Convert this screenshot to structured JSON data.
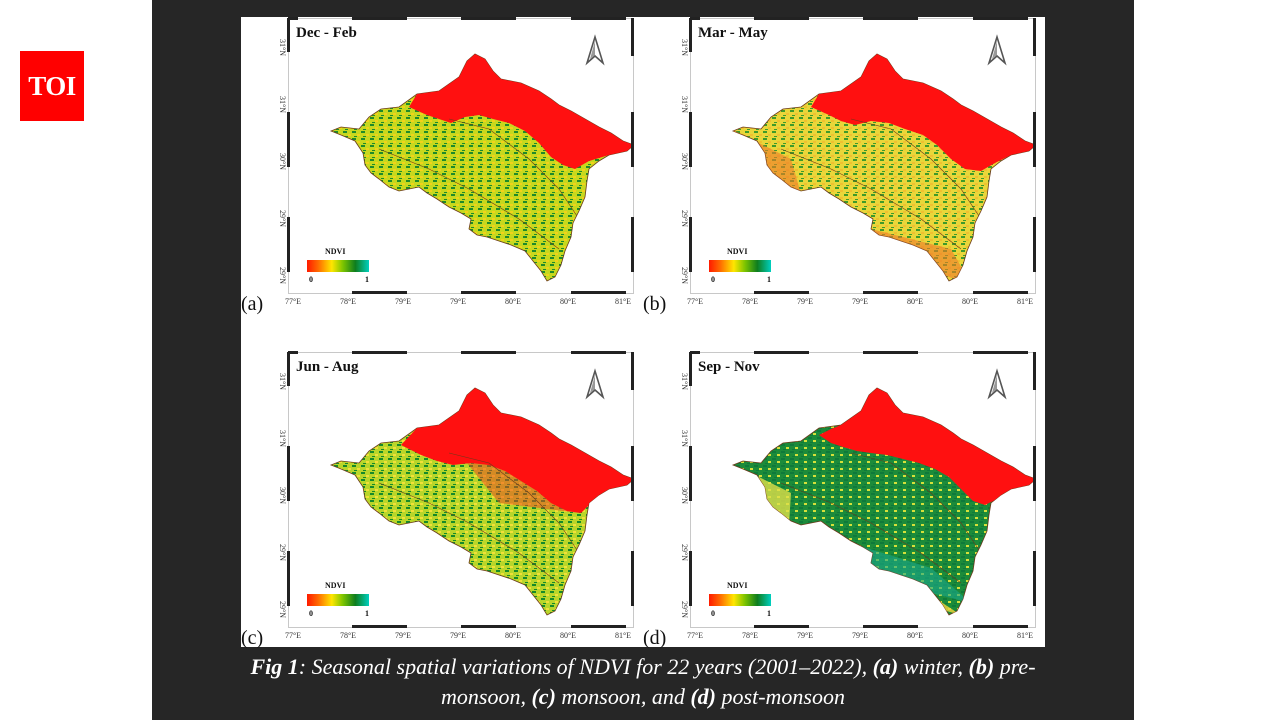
{
  "logo": {
    "text": "TOI",
    "color": "#ff0000"
  },
  "figure": {
    "panels": [
      {
        "letter": "(a)",
        "season": "Dec - Feb",
        "label": "winter"
      },
      {
        "letter": "(b)",
        "season": "Mar - May",
        "label": "pre-monsoon"
      },
      {
        "letter": "(c)",
        "season": "Jun - Aug",
        "label": "monsoon"
      },
      {
        "letter": "(d)",
        "season": "Sep - Nov",
        "label": "post-monsoon"
      }
    ],
    "legend": {
      "title": "NDVI",
      "min": "0",
      "max": "1",
      "colors": [
        "#ff1a00",
        "#ff6a00",
        "#ffe600",
        "#7cc400",
        "#0e7d1e",
        "#00cfbf"
      ]
    },
    "x_ticks": [
      "77°E",
      "78°E",
      "79°E",
      "79°E",
      "80°E",
      "80°E",
      "81°E"
    ],
    "y_ticks": [
      "31°N",
      "31°N",
      "30°N",
      "29°N",
      "29°N"
    ],
    "north_arrow": "north-arrow-icon"
  },
  "caption": {
    "fig_label": "Fig 1",
    "part1": ": Seasonal spatial variations of NDVI for 22 years (2001–2022), ",
    "a": "(a)",
    "a_text": " winter, ",
    "b": "(b)",
    "b_text": " pre-",
    "line2_start": "monsoon, ",
    "c": "(c)",
    "c_text": " monsoon, and ",
    "d": "(d)",
    "d_text": " post-monsoon"
  }
}
